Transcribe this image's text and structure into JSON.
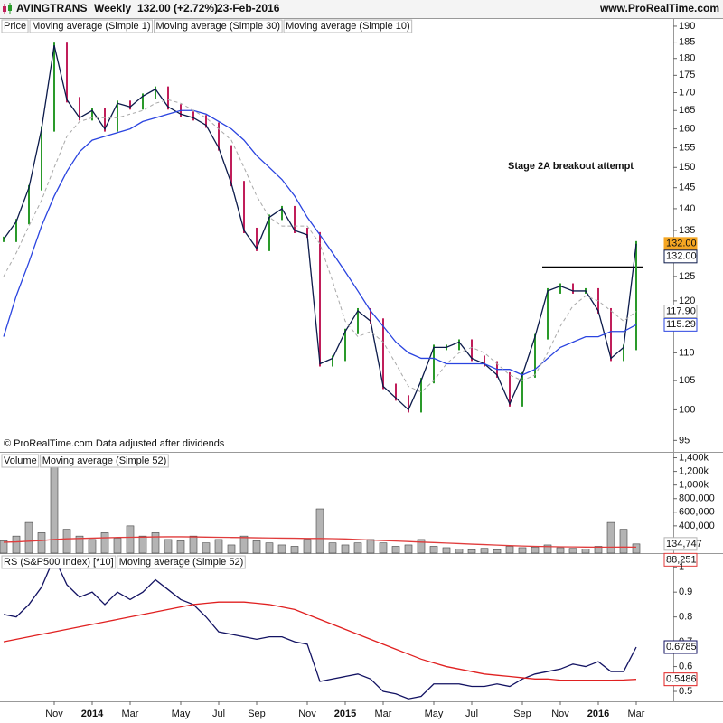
{
  "header": {
    "symbol": "AVINGTRANS",
    "period": "Weekly",
    "last": "132.00 (+2.72%)",
    "date": "23-Feb-2016",
    "site": "www.ProRealTime.com"
  },
  "chart_data": [
    {
      "type": "price",
      "log": true,
      "ylim": [
        93.2,
        192.3
      ],
      "yticks": [
        95,
        100,
        105,
        110,
        115,
        120,
        125,
        130,
        135,
        140,
        145,
        150,
        155,
        160,
        165,
        170,
        175,
        180,
        185,
        190
      ],
      "annotation": "Stage 2A breakout attempt",
      "breakout_level": 127,
      "note": "© ProRealTime.com  Data adjusted after dividends",
      "series": [
        {
          "name": "Price",
          "style": "bars",
          "up_color": "#2a9a2a",
          "down_color": "#c01e5a",
          "label_fill": "#f5a623",
          "last_value_label": "132.00",
          "values": [
            133,
            137,
            145,
            160,
            184,
            168,
            163,
            165,
            160,
            167,
            166,
            169,
            171,
            166,
            164,
            163,
            161,
            155,
            146,
            135,
            131,
            138,
            140,
            135,
            134,
            108,
            109,
            114,
            118,
            116,
            104,
            102,
            100,
            105,
            111,
            111,
            112,
            109,
            108,
            106,
            101,
            106,
            113,
            122,
            123,
            122,
            122,
            118,
            109,
            111,
            132
          ]
        },
        {
          "name": "Moving average (Simple 1)",
          "style": "line",
          "color": "#0b1a4a",
          "last_value_label": "132.00",
          "values": [
            133,
            137,
            145,
            160,
            184,
            168,
            163,
            165,
            160,
            167,
            166,
            169,
            171,
            166,
            164,
            163,
            161,
            155,
            146,
            135,
            131,
            138,
            140,
            135,
            134,
            108,
            109,
            114,
            118,
            116,
            104,
            102,
            100,
            105,
            111,
            111,
            112,
            109,
            108,
            106,
            101,
            106,
            113,
            122,
            123,
            122,
            122,
            118,
            109,
            111,
            132
          ]
        },
        {
          "name": "Moving average (Simple 30)",
          "style": "line",
          "color": "#2a44e0",
          "last_value_label": "115.29",
          "values": [
            113,
            121,
            128,
            136,
            143,
            149,
            154,
            157,
            158,
            159,
            160,
            162,
            163,
            164,
            165,
            165,
            164,
            162,
            160,
            157,
            153,
            150,
            147,
            143,
            138,
            134,
            130,
            126,
            122,
            118,
            115,
            112,
            110,
            109,
            109,
            108,
            108,
            108,
            108,
            107,
            107,
            106,
            107,
            109,
            111,
            112,
            113,
            113,
            114,
            114,
            115.29
          ]
        },
        {
          "name": "Moving average (Simple 10)",
          "style": "line",
          "dash": true,
          "color": "#a8a8a8",
          "last_value_label": "117.90",
          "values": [
            125,
            130,
            136,
            142,
            150,
            158,
            162,
            163,
            163,
            163,
            164,
            165,
            167,
            168,
            167,
            165,
            163,
            160,
            157,
            150,
            143,
            138,
            136,
            136,
            136,
            132,
            124,
            116,
            113,
            114,
            112,
            108,
            104,
            103,
            105,
            108,
            110,
            111,
            110,
            108,
            106,
            105,
            106,
            110,
            115,
            119,
            121,
            120,
            118,
            116,
            117.9
          ]
        }
      ]
    },
    {
      "type": "bar",
      "ylim": [
        0,
        1460000
      ],
      "yticks": [
        {
          "value": 400000,
          "label": "400,000"
        },
        {
          "value": 600000,
          "label": "600,000"
        },
        {
          "value": 800000,
          "label": "800,000"
        },
        {
          "value": 1000000,
          "label": "1,000k"
        },
        {
          "value": 1200000,
          "label": "1,200k"
        },
        {
          "value": 1400000,
          "label": "1,400k"
        }
      ],
      "series": [
        {
          "name": "Volume",
          "style": "bars",
          "color": "#b4b4b4",
          "last_value_label": "134,747",
          "values": [
            180000,
            250000,
            450000,
            300000,
            1400000,
            350000,
            250000,
            200000,
            300000,
            220000,
            400000,
            250000,
            300000,
            200000,
            180000,
            250000,
            150000,
            200000,
            120000,
            250000,
            180000,
            150000,
            120000,
            100000,
            200000,
            650000,
            150000,
            120000,
            150000,
            200000,
            150000,
            100000,
            120000,
            200000,
            100000,
            80000,
            60000,
            50000,
            70000,
            50000,
            100000,
            80000,
            90000,
            120000,
            80000,
            70000,
            60000,
            100000,
            450000,
            350000,
            134747
          ]
        },
        {
          "name": "Moving average (Simple 52)",
          "style": "line",
          "color": "#e03c3c",
          "last_value_label": "88,251",
          "values": [
            160000,
            165000,
            175000,
            185000,
            200000,
            210000,
            215000,
            220000,
            225000,
            230000,
            232000,
            235000,
            238000,
            240000,
            240000,
            238000,
            235000,
            232000,
            230000,
            228000,
            225000,
            222000,
            220000,
            218000,
            215000,
            215000,
            212000,
            208000,
            200000,
            192000,
            185000,
            178000,
            170000,
            162000,
            155000,
            148000,
            140000,
            132000,
            125000,
            118000,
            110000,
            105000,
            100000,
            96000,
            93000,
            91000,
            89000,
            88000,
            88000,
            88500,
            88251
          ]
        }
      ]
    },
    {
      "type": "line",
      "ylim": [
        0.46,
        1.05
      ],
      "yticks": [
        0.5,
        0.6,
        0.7,
        0.8,
        0.9,
        1
      ],
      "categories": [
        null,
        null,
        null,
        null,
        "Nov",
        null,
        null,
        "2014",
        null,
        null,
        "Mar",
        null,
        null,
        null,
        "May",
        null,
        null,
        "Jul",
        null,
        null,
        "Sep",
        null,
        null,
        null,
        "Nov",
        null,
        null,
        "2015",
        null,
        null,
        "Mar",
        null,
        null,
        null,
        "May",
        null,
        null,
        "Jul",
        null,
        null,
        null,
        "Sep",
        null,
        null,
        "Nov",
        null,
        null,
        "2016",
        null,
        null,
        "Mar"
      ],
      "series": [
        {
          "name": "RS (S&P500 Index) [*10]",
          "style": "line",
          "color": "#121262",
          "last_value_label": "0.6785",
          "values": [
            0.81,
            0.8,
            0.85,
            0.92,
            1.04,
            0.93,
            0.88,
            0.9,
            0.85,
            0.9,
            0.87,
            0.9,
            0.95,
            0.91,
            0.87,
            0.85,
            0.8,
            0.74,
            0.73,
            0.72,
            0.71,
            0.72,
            0.72,
            0.7,
            0.69,
            0.54,
            0.55,
            0.56,
            0.57,
            0.55,
            0.5,
            0.49,
            0.47,
            0.48,
            0.53,
            0.53,
            0.53,
            0.52,
            0.52,
            0.53,
            0.52,
            0.55,
            0.57,
            0.58,
            0.59,
            0.61,
            0.6,
            0.62,
            0.58,
            0.58,
            0.6785
          ]
        },
        {
          "name": "Moving average (Simple 52)",
          "style": "line",
          "color": "#e02020",
          "last_value_label": "0.5486",
          "values": [
            0.7,
            0.71,
            0.72,
            0.73,
            0.74,
            0.75,
            0.76,
            0.77,
            0.78,
            0.79,
            0.8,
            0.81,
            0.82,
            0.83,
            0.84,
            0.85,
            0.855,
            0.86,
            0.86,
            0.86,
            0.855,
            0.85,
            0.84,
            0.83,
            0.81,
            0.79,
            0.77,
            0.75,
            0.73,
            0.71,
            0.69,
            0.67,
            0.65,
            0.63,
            0.615,
            0.6,
            0.59,
            0.58,
            0.57,
            0.565,
            0.56,
            0.555,
            0.55,
            0.55,
            0.545,
            0.545,
            0.545,
            0.545,
            0.545,
            0.546,
            0.5486
          ]
        }
      ]
    }
  ]
}
